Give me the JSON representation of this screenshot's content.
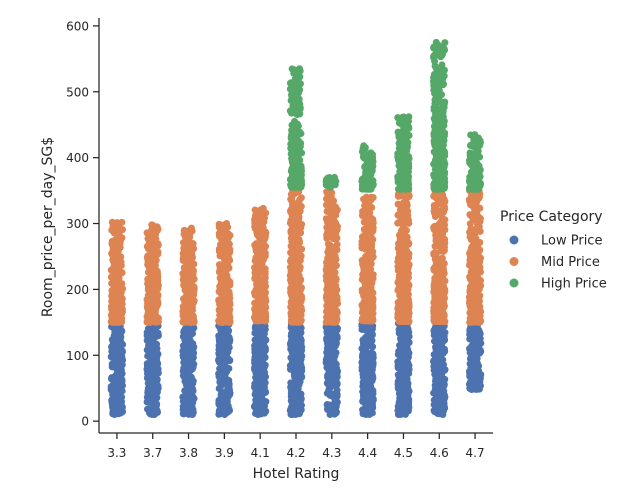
{
  "chart_data": {
    "type": "scatter",
    "subtype": "strip",
    "xlabel": "Hotel Rating",
    "ylabel": "Room_price_per_day_SG$",
    "categories": [
      "3.3",
      "3.7",
      "3.8",
      "3.9",
      "4.1",
      "4.2",
      "4.3",
      "4.4",
      "4.5",
      "4.6",
      "4.7"
    ],
    "yticks": [
      0,
      100,
      200,
      300,
      400,
      500,
      600
    ],
    "ylim": [
      -18,
      612
    ],
    "grid": false,
    "legend": {
      "title": "Price Category",
      "placement": "right"
    },
    "series": [
      {
        "name": "Low Price",
        "color": "#4c72b0",
        "ranges": [
          [
            10,
            147
          ],
          [
            10,
            146
          ],
          [
            10,
            146
          ],
          [
            10,
            147
          ],
          [
            10,
            150
          ],
          [
            10,
            148
          ],
          [
            10,
            146
          ],
          [
            10,
            151
          ],
          [
            10,
            149
          ],
          [
            10,
            148
          ],
          [
            48,
            147
          ]
        ]
      },
      {
        "name": "Mid Price",
        "color": "#dd8452",
        "ranges": [
          [
            150,
            302
          ],
          [
            150,
            298
          ],
          [
            150,
            293
          ],
          [
            150,
            300
          ],
          [
            152,
            323
          ],
          [
            150,
            353
          ],
          [
            150,
            348
          ],
          [
            152,
            340
          ],
          [
            151,
            349
          ],
          [
            151,
            350
          ],
          [
            150,
            350
          ]
        ]
      },
      {
        "name": "High Price",
        "color": "#55a868",
        "ranges": [
          null,
          null,
          null,
          null,
          null,
          [
            355,
            535
          ],
          [
            355,
            370
          ],
          [
            352,
            418
          ],
          [
            352,
            462
          ],
          [
            352,
            575
          ],
          [
            352,
            435
          ]
        ]
      }
    ]
  }
}
